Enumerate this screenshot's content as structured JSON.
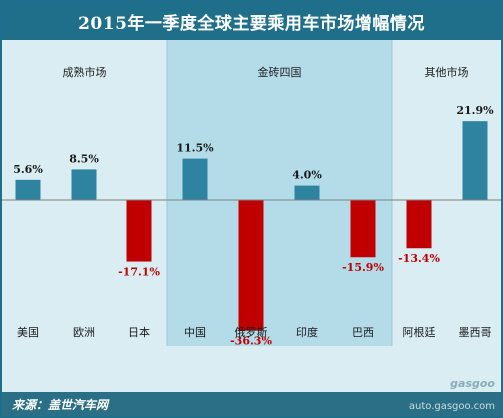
{
  "title": "2015年一季度全球主要乘用车市场增幅情况",
  "source": "来源：盖世汽车网",
  "watermark": "gasgoo",
  "watermark_url": "auto.gasgoo.com",
  "colors": {
    "positive": "#2e84a0",
    "negative": "#c00000",
    "positive_label": "#1a1a1a",
    "negative_label": "#c00000",
    "band_light": "#d9edf3",
    "band_dark": "#b3dbe8",
    "axis": "#7f7f7f"
  },
  "chart_data": {
    "type": "bar",
    "title": "2015年一季度全球主要乘用车市场增幅情况",
    "groups": [
      {
        "name": "成熟市场",
        "categories": [
          "美国",
          "欧洲",
          "日本"
        ]
      },
      {
        "name": "金砖四国",
        "categories": [
          "中国",
          "俄罗斯",
          "印度",
          "巴西"
        ]
      },
      {
        "name": "其他市场",
        "categories": [
          "阿根廷",
          "墨西哥"
        ]
      }
    ],
    "categories": [
      "美国",
      "欧洲",
      "日本",
      "中国",
      "俄罗斯",
      "印度",
      "巴西",
      "阿根廷",
      "墨西哥"
    ],
    "values": [
      5.6,
      8.5,
      -17.1,
      11.5,
      -36.3,
      4.0,
      -15.9,
      -13.4,
      21.9
    ],
    "labels": [
      "5.6%",
      "8.5%",
      "-17.1%",
      "11.5%",
      "-36.3%",
      "4.0%",
      "-15.9%",
      "-13.4%",
      "21.9%"
    ],
    "unit": "%",
    "ylim": [
      -40,
      25
    ],
    "grid": false,
    "legend": "none"
  }
}
